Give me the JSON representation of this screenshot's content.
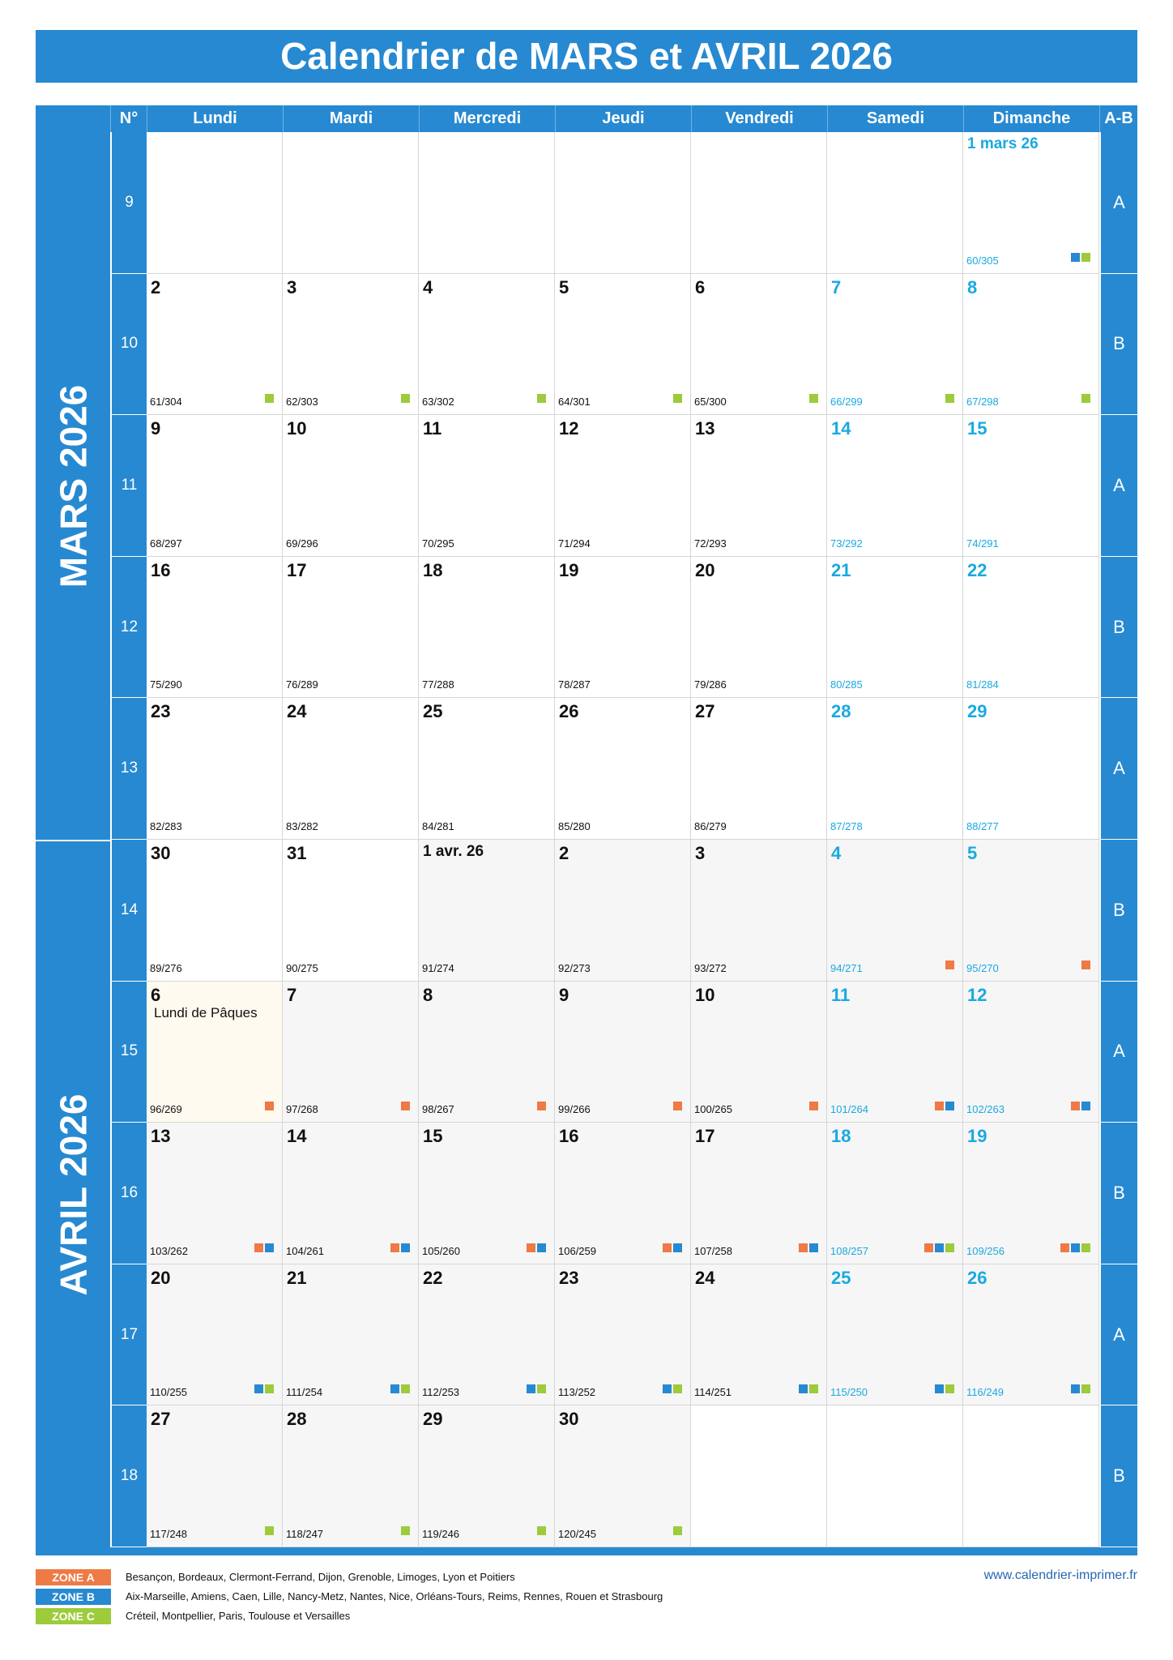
{
  "title": "Calendrier de MARS et AVRIL 2026",
  "header": {
    "num": "N°",
    "days": [
      "Lundi",
      "Mardi",
      "Mercredi",
      "Jeudi",
      "Vendredi",
      "Samedi",
      "Dimanche"
    ],
    "ab": "A-B"
  },
  "months": [
    "MARS 2026",
    "AVRIL 2026"
  ],
  "colors": {
    "blue": "#2789d1",
    "zone_a": "#ee7a45",
    "zone_b": "#2789d1",
    "zone_c": "#9dcb3b",
    "weekend_text": "#1aa9e0"
  },
  "weeks": [
    {
      "num": "9",
      "ab": "A",
      "days": [
        null,
        null,
        null,
        null,
        null,
        null,
        {
          "d": "1 mars 26",
          "n": "60/305",
          "z": "BC",
          "we": true,
          "small": true
        }
      ]
    },
    {
      "num": "10",
      "ab": "B",
      "days": [
        {
          "d": "2",
          "n": "61/304",
          "z": "C"
        },
        {
          "d": "3",
          "n": "62/303",
          "z": "C"
        },
        {
          "d": "4",
          "n": "63/302",
          "z": "C"
        },
        {
          "d": "5",
          "n": "64/301",
          "z": "C"
        },
        {
          "d": "6",
          "n": "65/300",
          "z": "C"
        },
        {
          "d": "7",
          "n": "66/299",
          "z": "C",
          "we": true
        },
        {
          "d": "8",
          "n": "67/298",
          "z": "C",
          "we": true
        }
      ]
    },
    {
      "num": "11",
      "ab": "A",
      "days": [
        {
          "d": "9",
          "n": "68/297"
        },
        {
          "d": "10",
          "n": "69/296"
        },
        {
          "d": "11",
          "n": "70/295"
        },
        {
          "d": "12",
          "n": "71/294"
        },
        {
          "d": "13",
          "n": "72/293"
        },
        {
          "d": "14",
          "n": "73/292",
          "we": true
        },
        {
          "d": "15",
          "n": "74/291",
          "we": true
        }
      ]
    },
    {
      "num": "12",
      "ab": "B",
      "days": [
        {
          "d": "16",
          "n": "75/290"
        },
        {
          "d": "17",
          "n": "76/289"
        },
        {
          "d": "18",
          "n": "77/288"
        },
        {
          "d": "19",
          "n": "78/287"
        },
        {
          "d": "20",
          "n": "79/286"
        },
        {
          "d": "21",
          "n": "80/285",
          "we": true
        },
        {
          "d": "22",
          "n": "81/284",
          "we": true
        }
      ]
    },
    {
      "num": "13",
      "ab": "A",
      "days": [
        {
          "d": "23",
          "n": "82/283"
        },
        {
          "d": "24",
          "n": "83/282"
        },
        {
          "d": "25",
          "n": "84/281"
        },
        {
          "d": "26",
          "n": "85/280"
        },
        {
          "d": "27",
          "n": "86/279"
        },
        {
          "d": "28",
          "n": "87/278",
          "we": true
        },
        {
          "d": "29",
          "n": "88/277",
          "we": true
        }
      ]
    },
    {
      "num": "14",
      "ab": "B",
      "days": [
        {
          "d": "30",
          "n": "89/276"
        },
        {
          "d": "31",
          "n": "90/275"
        },
        {
          "d": "1 avr. 26",
          "n": "91/274",
          "gray": true,
          "small": true
        },
        {
          "d": "2",
          "n": "92/273",
          "gray": true
        },
        {
          "d": "3",
          "n": "93/272",
          "gray": true
        },
        {
          "d": "4",
          "n": "94/271",
          "z": "A",
          "we": true,
          "gray": true
        },
        {
          "d": "5",
          "n": "95/270",
          "z": "A",
          "we": true,
          "gray": true
        }
      ]
    },
    {
      "num": "15",
      "ab": "A",
      "days": [
        {
          "d": "6",
          "n": "96/269",
          "z": "A",
          "note": "Lundi de Pâques",
          "holiday": true
        },
        {
          "d": "7",
          "n": "97/268",
          "z": "A",
          "gray": true
        },
        {
          "d": "8",
          "n": "98/267",
          "z": "A",
          "gray": true
        },
        {
          "d": "9",
          "n": "99/266",
          "z": "A",
          "gray": true
        },
        {
          "d": "10",
          "n": "100/265",
          "z": "A",
          "gray": true
        },
        {
          "d": "11",
          "n": "101/264",
          "z": "AB",
          "we": true,
          "gray": true
        },
        {
          "d": "12",
          "n": "102/263",
          "z": "AB",
          "we": true,
          "gray": true
        }
      ]
    },
    {
      "num": "16",
      "ab": "B",
      "days": [
        {
          "d": "13",
          "n": "103/262",
          "z": "AB",
          "gray": true
        },
        {
          "d": "14",
          "n": "104/261",
          "z": "AB",
          "gray": true
        },
        {
          "d": "15",
          "n": "105/260",
          "z": "AB",
          "gray": true
        },
        {
          "d": "16",
          "n": "106/259",
          "z": "AB",
          "gray": true
        },
        {
          "d": "17",
          "n": "107/258",
          "z": "AB",
          "gray": true
        },
        {
          "d": "18",
          "n": "108/257",
          "z": "ABC",
          "we": true,
          "gray": true
        },
        {
          "d": "19",
          "n": "109/256",
          "z": "ABC",
          "we": true,
          "gray": true
        }
      ]
    },
    {
      "num": "17",
      "ab": "A",
      "days": [
        {
          "d": "20",
          "n": "110/255",
          "z": "BC",
          "gray": true
        },
        {
          "d": "21",
          "n": "111/254",
          "z": "BC",
          "gray": true
        },
        {
          "d": "22",
          "n": "112/253",
          "z": "BC",
          "gray": true
        },
        {
          "d": "23",
          "n": "113/252",
          "z": "BC",
          "gray": true
        },
        {
          "d": "24",
          "n": "114/251",
          "z": "BC",
          "gray": true
        },
        {
          "d": "25",
          "n": "115/250",
          "z": "BC",
          "we": true,
          "gray": true
        },
        {
          "d": "26",
          "n": "116/249",
          "z": "BC",
          "we": true,
          "gray": true
        }
      ]
    },
    {
      "num": "18",
      "ab": "B",
      "days": [
        {
          "d": "27",
          "n": "117/248",
          "z": "C",
          "gray": true
        },
        {
          "d": "28",
          "n": "118/247",
          "z": "C",
          "gray": true
        },
        {
          "d": "29",
          "n": "119/246",
          "z": "C",
          "gray": true
        },
        {
          "d": "30",
          "n": "120/245",
          "z": "C",
          "gray": true
        },
        null,
        null,
        null
      ]
    }
  ],
  "legend": [
    {
      "label": "ZONE A",
      "color": "#ee7a45",
      "text": "Besançon, Bordeaux, Clermont-Ferrand, Dijon, Grenoble, Limoges, Lyon et Poitiers"
    },
    {
      "label": "ZONE B",
      "color": "#2789d1",
      "text": "Aix-Marseille, Amiens, Caen, Lille, Nancy-Metz, Nantes, Nice, Orléans-Tours, Reims, Rennes, Rouen et Strasbourg"
    },
    {
      "label": "ZONE C",
      "color": "#9dcb3b",
      "text": "Créteil, Montpellier, Paris, Toulouse et Versailles"
    }
  ],
  "website": "www.calendrier-imprimer.fr"
}
